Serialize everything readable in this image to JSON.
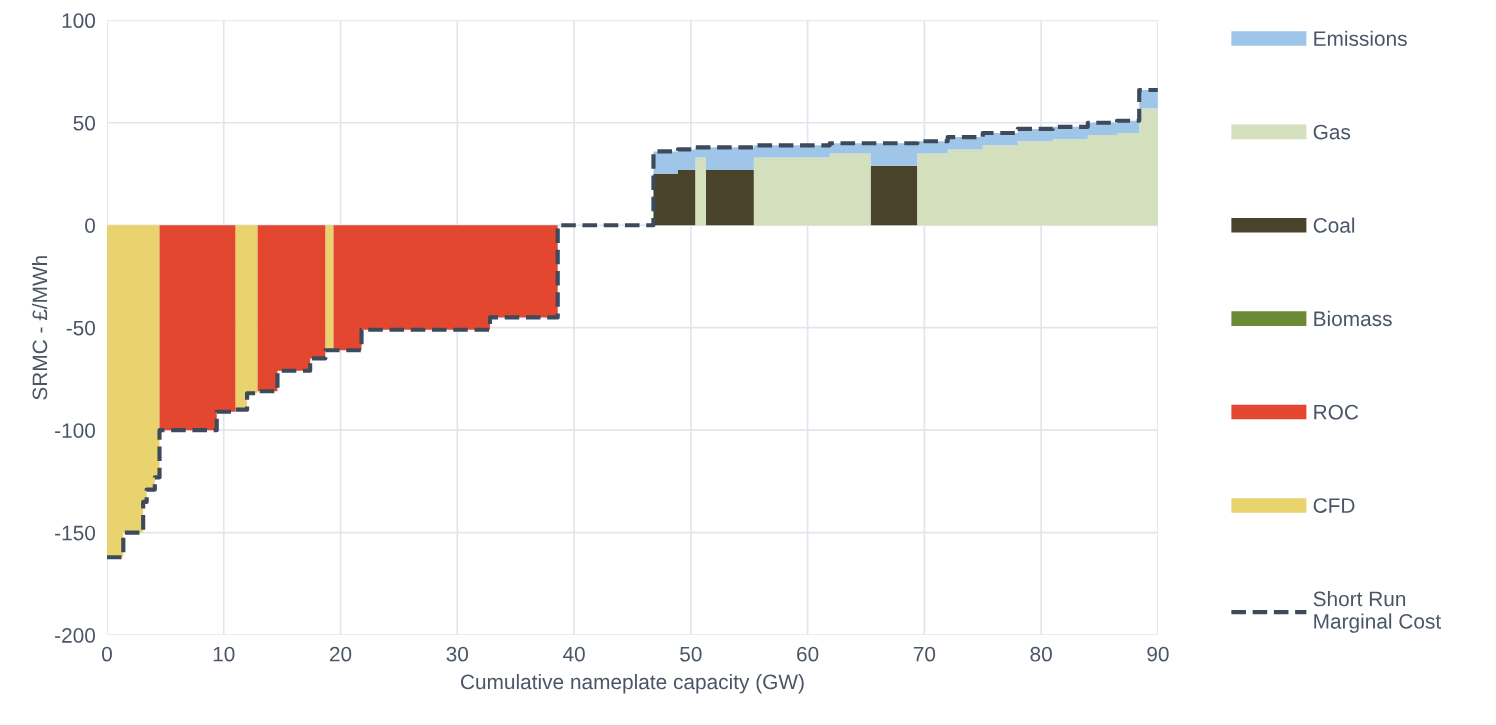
{
  "chart_data": {
    "type": "area",
    "stacked": true,
    "xlabel": "Cumulative nameplate capacity (GW)",
    "ylabel": "SRMC - £/MWh",
    "x": [
      0,
      1.4,
      1.4,
      3.1,
      3.1,
      3.4,
      3.4,
      4.1,
      4.1,
      4.5,
      4.5,
      9.4,
      9.4,
      11.0,
      11.0,
      12.0,
      12.0,
      12.9,
      12.9,
      14.6,
      14.6,
      17.4,
      17.4,
      18.7,
      18.7,
      19.4,
      19.4,
      21.8,
      21.8,
      32.8,
      32.8,
      38.6,
      38.6,
      46.8,
      46.8,
      48.9,
      48.9,
      50.4,
      50.4,
      51.3,
      51.3,
      55.4,
      55.4,
      61.9,
      61.9,
      65.4,
      65.4,
      69.4,
      69.4,
      72,
      72,
      75,
      75,
      78,
      78,
      81,
      81,
      84,
      84,
      86.5,
      86.5,
      88.4,
      88.4,
      90
    ],
    "series": [
      {
        "name": "CFD",
        "color": "#e9d36f",
        "values": [
          -162,
          -162,
          -150,
          -150,
          -135,
          -135,
          -129,
          -129,
          -123,
          -123,
          null,
          null,
          null,
          null,
          -90,
          -90,
          -82,
          -82,
          null,
          null,
          null,
          null,
          null,
          null,
          -61,
          -61,
          null,
          null,
          null,
          null,
          null,
          null,
          null,
          null,
          null,
          null,
          null,
          null,
          null,
          null,
          null,
          null,
          null,
          null,
          null,
          null,
          null,
          null,
          null,
          null,
          null,
          null,
          null,
          null,
          null,
          null,
          null,
          null,
          null,
          null,
          null,
          null,
          null,
          null
        ]
      },
      {
        "name": "ROC",
        "color": "#e4472f",
        "values": [
          null,
          null,
          null,
          null,
          null,
          null,
          null,
          null,
          null,
          null,
          -100,
          -100,
          -91,
          -91,
          null,
          null,
          null,
          null,
          -81,
          -81,
          -71,
          -71,
          -65,
          -65,
          null,
          null,
          -61,
          -61,
          -51,
          -51,
          -45,
          -45,
          null,
          null,
          null,
          null,
          null,
          null,
          null,
          null,
          null,
          null,
          null,
          null,
          null,
          null,
          null,
          null,
          null,
          null,
          null,
          null,
          null,
          null,
          null,
          null,
          null,
          null,
          null,
          null,
          null,
          null,
          null,
          null
        ]
      },
      {
        "name": "Biomass",
        "color": "#6b8a35",
        "values": [
          null,
          null,
          null,
          null,
          null,
          null,
          null,
          null,
          null,
          null,
          null,
          null,
          null,
          null,
          null,
          null,
          null,
          null,
          null,
          null,
          null,
          null,
          null,
          null,
          null,
          null,
          null,
          null,
          null,
          null,
          null,
          null,
          null,
          null,
          null,
          null,
          null,
          null,
          null,
          null,
          null,
          null,
          null,
          null,
          null,
          null,
          null,
          null,
          null,
          null,
          null,
          null,
          null,
          null,
          null,
          null,
          null,
          null,
          null,
          null,
          null,
          null,
          null,
          null
        ]
      },
      {
        "name": "Coal",
        "color": "#4a432c",
        "values": [
          null,
          null,
          null,
          null,
          null,
          null,
          null,
          null,
          null,
          null,
          null,
          null,
          null,
          null,
          null,
          null,
          null,
          null,
          null,
          null,
          null,
          null,
          null,
          null,
          null,
          null,
          null,
          null,
          null,
          null,
          null,
          null,
          null,
          null,
          25,
          25,
          27,
          27,
          null,
          null,
          27,
          27,
          null,
          null,
          null,
          null,
          29,
          29,
          null,
          null,
          null,
          null,
          null,
          null,
          null,
          null,
          null,
          null,
          null,
          null,
          null,
          null,
          null,
          null
        ]
      },
      {
        "name": "Gas",
        "color": "#d4dfbd",
        "values": [
          null,
          null,
          null,
          null,
          null,
          null,
          null,
          null,
          null,
          null,
          null,
          null,
          null,
          null,
          null,
          null,
          null,
          null,
          null,
          null,
          null,
          null,
          null,
          null,
          null,
          null,
          null,
          null,
          null,
          null,
          null,
          null,
          null,
          null,
          null,
          null,
          null,
          null,
          33,
          33,
          null,
          null,
          33,
          33,
          35,
          35,
          null,
          null,
          35,
          35,
          37,
          37,
          39,
          39,
          41,
          41,
          42,
          42,
          44,
          44,
          45,
          45,
          57,
          57
        ]
      },
      {
        "name": "Emissions",
        "color": "#9fc6e8",
        "values": [
          null,
          null,
          null,
          null,
          null,
          null,
          null,
          null,
          null,
          null,
          null,
          null,
          null,
          null,
          null,
          null,
          null,
          null,
          null,
          null,
          null,
          null,
          null,
          null,
          null,
          null,
          null,
          null,
          null,
          null,
          null,
          null,
          null,
          null,
          11,
          11,
          10,
          10,
          5,
          5,
          11,
          11,
          6,
          6,
          5,
          5,
          11,
          11,
          6,
          6,
          6,
          6,
          6,
          6,
          6,
          6,
          6,
          6,
          6,
          6,
          6,
          6,
          9,
          9
        ]
      },
      {
        "name": "Short Run\nMarginal Cost",
        "type": "line",
        "color": "#3d4a5c",
        "line_style": "dashed",
        "values": [
          -162,
          -162,
          -150,
          -150,
          -135,
          -135,
          -129,
          -129,
          -123,
          -123,
          -100,
          -100,
          -91,
          -91,
          -90,
          -90,
          -82,
          -82,
          -81,
          -81,
          -71,
          -71,
          -65,
          -65,
          -61,
          -61,
          -61,
          -61,
          -51,
          -51,
          -45,
          -45,
          0,
          0,
          36,
          36,
          37,
          37,
          38,
          38,
          38,
          38,
          39,
          39,
          40,
          40,
          40,
          40,
          41,
          41,
          43,
          43,
          45,
          45,
          47,
          47,
          48,
          48,
          50,
          50,
          51,
          51,
          66,
          66
        ]
      }
    ],
    "xlim": [
      0,
      90
    ],
    "xticks": [
      0,
      10,
      20,
      30,
      40,
      50,
      60,
      70,
      80,
      90
    ],
    "ylim": [
      -200,
      100
    ],
    "yticks": [
      -200,
      -150,
      -100,
      -50,
      0,
      50,
      100
    ],
    "grid": true,
    "legend": "right"
  }
}
